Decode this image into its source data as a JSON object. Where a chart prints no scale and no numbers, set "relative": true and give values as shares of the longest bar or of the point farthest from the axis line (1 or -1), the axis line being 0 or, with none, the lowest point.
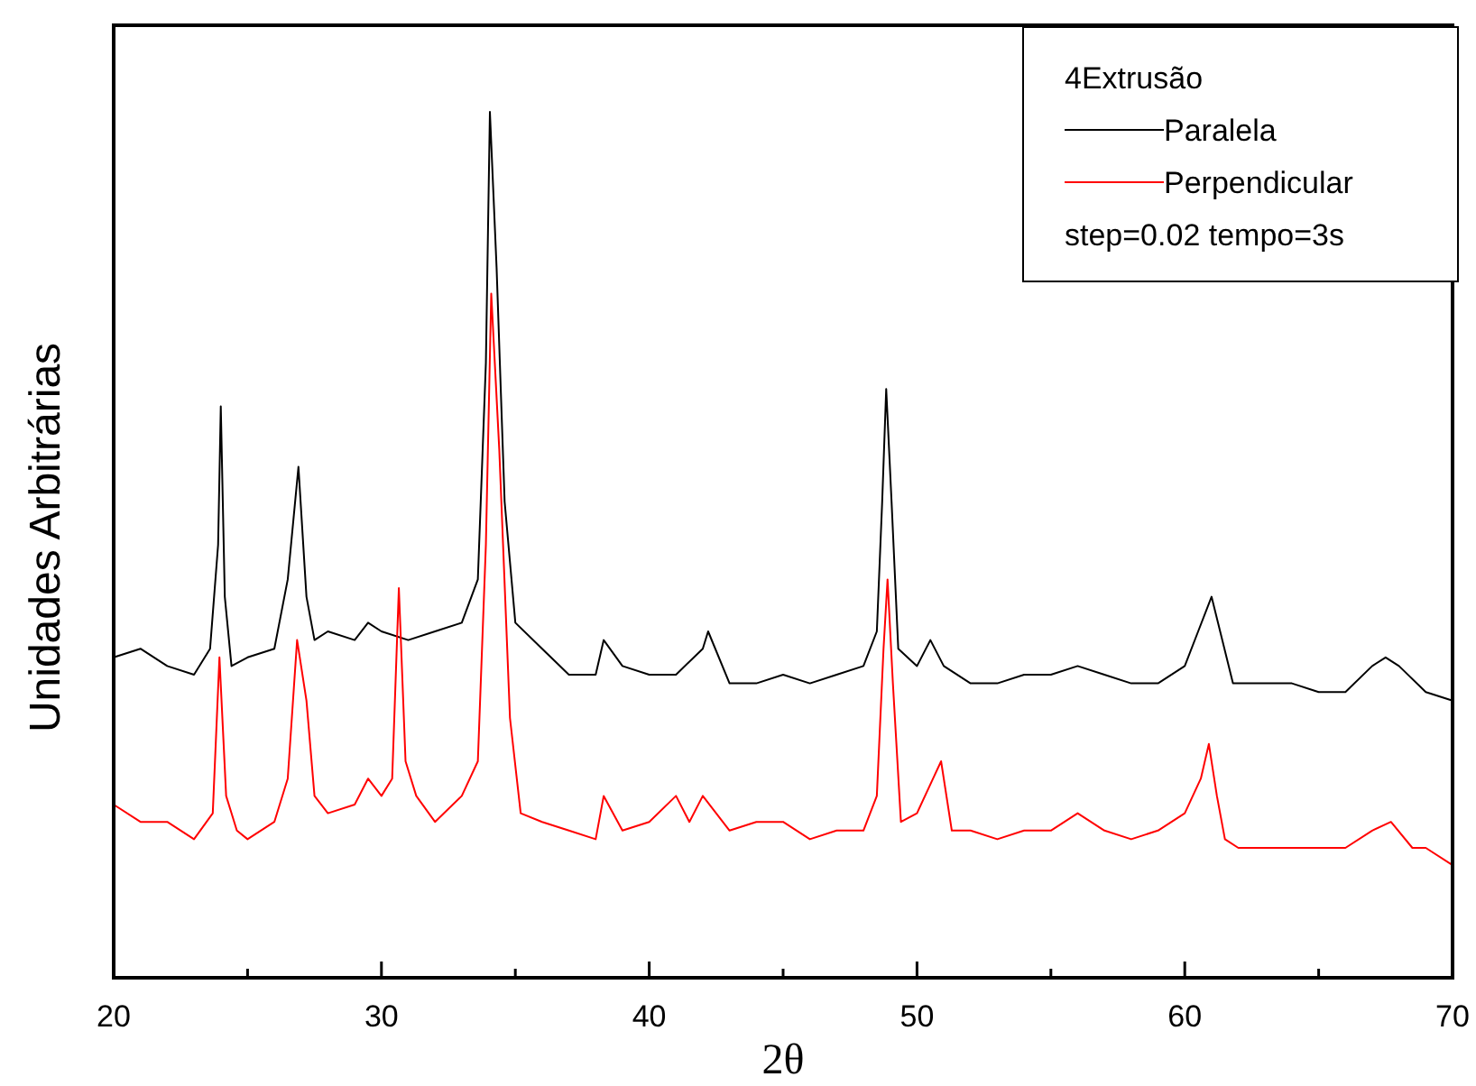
{
  "chart_data": {
    "type": "line",
    "relative": true,
    "xlabel": "2θ",
    "ylabel": "Unidades Arbitrárias",
    "legend_title": "4Extrusão",
    "legend": "top right",
    "annotations": [
      "step=0.02 tempo=3s"
    ],
    "xlim": [
      20,
      70
    ],
    "xticks": [
      20,
      {
        "value": 25,
        "label": null
      },
      30,
      {
        "value": 35,
        "label": null
      },
      40,
      {
        "value": 45,
        "label": null
      },
      50,
      {
        "value": 55,
        "label": null
      },
      60,
      {
        "value": 65,
        "label": null
      },
      70
    ],
    "series": [
      {
        "name": "Paralela",
        "color": "#000000",
        "x": [
          20,
          21,
          22,
          23,
          23.6,
          23.9,
          24,
          24.15,
          24.4,
          25,
          26,
          26.5,
          26.9,
          27.2,
          27.5,
          28,
          29,
          29.5,
          30,
          31,
          32,
          33,
          33.6,
          33.9,
          34.05,
          34.3,
          34.6,
          35,
          36,
          37,
          38,
          38.3,
          39,
          40,
          41,
          42,
          42.2,
          43,
          44,
          45,
          46,
          47,
          48,
          48.5,
          48.7,
          48.85,
          49.05,
          49.3,
          50,
          50.5,
          51,
          52,
          53,
          54,
          55,
          56,
          57,
          58,
          59,
          60,
          60.5,
          61,
          61.4,
          61.8,
          62.5,
          63,
          64,
          65,
          66,
          67,
          67.5,
          68,
          69,
          70
        ],
        "values": [
          0.37,
          0.38,
          0.36,
          0.35,
          0.38,
          0.5,
          0.66,
          0.44,
          0.36,
          0.37,
          0.38,
          0.46,
          0.59,
          0.44,
          0.39,
          0.4,
          0.39,
          0.41,
          0.4,
          0.39,
          0.4,
          0.41,
          0.46,
          0.71,
          1,
          0.82,
          0.55,
          0.41,
          0.38,
          0.35,
          0.35,
          0.39,
          0.36,
          0.35,
          0.35,
          0.38,
          0.4,
          0.34,
          0.34,
          0.35,
          0.34,
          0.35,
          0.36,
          0.4,
          0.55,
          0.68,
          0.55,
          0.38,
          0.36,
          0.39,
          0.36,
          0.34,
          0.34,
          0.35,
          0.35,
          0.36,
          0.35,
          0.34,
          0.34,
          0.36,
          0.4,
          0.44,
          0.39,
          0.34,
          0.34,
          0.34,
          0.34,
          0.33,
          0.33,
          0.36,
          0.37,
          0.36,
          0.33,
          0.32
        ]
      },
      {
        "name": "Perpendicular",
        "color": "#ff0000",
        "x": [
          20,
          21,
          22,
          23,
          23.7,
          23.95,
          24.2,
          24.6,
          25,
          26,
          26.5,
          26.85,
          27.2,
          27.5,
          28,
          29,
          29.5,
          30,
          30.4,
          30.65,
          30.9,
          31.3,
          32,
          33,
          33.6,
          33.9,
          34.1,
          34.4,
          34.8,
          35.2,
          36,
          37,
          38,
          38.3,
          39,
          40,
          41,
          41.5,
          42,
          43,
          44,
          45,
          46,
          47,
          48,
          48.5,
          48.75,
          48.9,
          49.1,
          49.4,
          50,
          50.6,
          50.9,
          51.3,
          52,
          53,
          54,
          55,
          56,
          57,
          58,
          59,
          60,
          60.6,
          60.9,
          61.2,
          61.5,
          62,
          63,
          64,
          65,
          66,
          67,
          67.7,
          68.5,
          69,
          70
        ],
        "values": [
          0.2,
          0.18,
          0.18,
          0.16,
          0.19,
          0.37,
          0.21,
          0.17,
          0.16,
          0.18,
          0.23,
          0.39,
          0.32,
          0.21,
          0.19,
          0.2,
          0.23,
          0.21,
          0.23,
          0.45,
          0.25,
          0.21,
          0.18,
          0.21,
          0.25,
          0.5,
          0.79,
          0.61,
          0.3,
          0.19,
          0.18,
          0.17,
          0.16,
          0.21,
          0.17,
          0.18,
          0.21,
          0.18,
          0.21,
          0.17,
          0.18,
          0.18,
          0.16,
          0.17,
          0.17,
          0.21,
          0.38,
          0.46,
          0.34,
          0.18,
          0.19,
          0.23,
          0.25,
          0.17,
          0.17,
          0.16,
          0.17,
          0.17,
          0.19,
          0.17,
          0.16,
          0.17,
          0.19,
          0.23,
          0.27,
          0.21,
          0.16,
          0.15,
          0.15,
          0.15,
          0.15,
          0.15,
          0.17,
          0.18,
          0.15,
          0.15,
          0.13
        ]
      }
    ]
  }
}
